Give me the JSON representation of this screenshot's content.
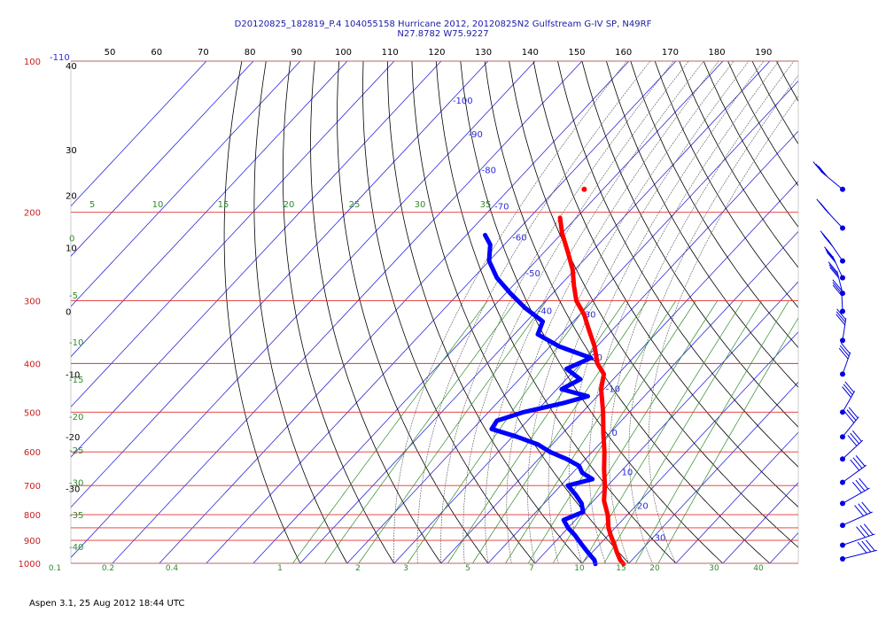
{
  "header": {
    "line1": "D20120825_182819_P.4 104055158 Hurricane 2012, 20120825N2 Gulfstream G-IV SP, N49RF",
    "line2": "N27.8782 W75.9227"
  },
  "footer": {
    "text": "Aspen 3.1, 25 Aug 2012  18:44 UTC"
  },
  "colors": {
    "isobar": "#e23030",
    "pressure_label": "#c81e1e",
    "isotherm": "#2b2bd6",
    "dry_adiabat": "#000000",
    "moist_adiabat": "#555555",
    "mixing_ratio": "#2e8b2e",
    "temperature": "#ff0000",
    "dewpoint": "#0000ff",
    "wind": "#0000e0"
  },
  "chart_data": {
    "type": "line",
    "chart_kind": "skew-T log-p thermodynamic diagram",
    "pressure_axis": {
      "scale": "log",
      "range": [
        1000,
        100
      ],
      "ticks": [
        100,
        200,
        300,
        400,
        500,
        600,
        700,
        800,
        900,
        1000
      ],
      "extra_isobars": [
        850
      ]
    },
    "top_axis_ticks": [
      "50",
      "60",
      "70",
      "80",
      "90",
      "100",
      "110",
      "120",
      "130",
      "140",
      "150",
      "160",
      "170",
      "180",
      "190"
    ],
    "top_left_label": "-110",
    "isotherm_labels": [
      {
        "value": "-100",
        "t": -100,
        "p": 120
      },
      {
        "value": "-90",
        "t": -90,
        "p": 140
      },
      {
        "value": "-80",
        "t": -80,
        "p": 165
      },
      {
        "value": "-70",
        "t": -70,
        "p": 195
      },
      {
        "value": "-60",
        "t": -60,
        "p": 225
      },
      {
        "value": "-50",
        "t": -50,
        "p": 265
      },
      {
        "value": "-40",
        "t": -40,
        "p": 315
      },
      {
        "value": "-30",
        "t": -30,
        "p": 320
      },
      {
        "value": "-20",
        "t": -20,
        "p": 390
      },
      {
        "value": "-10",
        "t": -10,
        "p": 450
      },
      {
        "value": "0",
        "t": 0,
        "p": 550
      },
      {
        "value": "10",
        "t": 10,
        "p": 660
      },
      {
        "value": "20",
        "t": 20,
        "p": 770
      },
      {
        "value": "30",
        "t": 30,
        "p": 890
      }
    ],
    "left_axis_labels": [
      {
        "value": "40",
        "p": 102
      },
      {
        "value": "30",
        "p": 150
      },
      {
        "value": "20",
        "p": 185
      },
      {
        "value": "10",
        "p": 235
      },
      {
        "value": "0",
        "p": 315
      },
      {
        "value": "-10",
        "p": 420
      },
      {
        "value": "-20",
        "p": 560
      },
      {
        "value": "-30",
        "p": 710
      }
    ],
    "mixing_ratio_left_labels": [
      {
        "value": "0",
        "p": 225
      },
      {
        "value": "-5",
        "p": 292
      },
      {
        "value": "-10",
        "p": 362
      },
      {
        "value": "-15",
        "p": 430
      },
      {
        "value": "-20",
        "p": 510
      },
      {
        "value": "-25",
        "p": 595
      },
      {
        "value": "-30",
        "p": 690
      },
      {
        "value": "-35",
        "p": 800
      },
      {
        "value": "-40",
        "p": 925
      }
    ],
    "moist_adiabat_top_labels": [
      "5",
      "10",
      "15",
      "20",
      "25",
      "30",
      "35"
    ],
    "mixing_ratio_bottom_labels": [
      "0.1",
      "0.2",
      "0.4",
      "1",
      "2",
      "3",
      "5",
      "7",
      "10",
      "15",
      "20",
      "30",
      "40"
    ],
    "series": [
      {
        "name": "",
        "role": "temperature",
        "color": "#ff0000",
        "points": [
          {
            "p": 1003,
            "t": 29.0
          },
          {
            "p": 985,
            "t": 27.5
          },
          {
            "p": 950,
            "t": 25.2
          },
          {
            "p": 915,
            "t": 23.0
          },
          {
            "p": 880,
            "t": 20.6
          },
          {
            "p": 850,
            "t": 18.6
          },
          {
            "p": 800,
            "t": 15.8
          },
          {
            "p": 750,
            "t": 12.2
          },
          {
            "p": 700,
            "t": 9.4
          },
          {
            "p": 650,
            "t": 6.0
          },
          {
            "p": 600,
            "t": 2.6
          },
          {
            "p": 550,
            "t": -1.4
          },
          {
            "p": 500,
            "t": -5.6
          },
          {
            "p": 450,
            "t": -10.6
          },
          {
            "p": 420,
            "t": -13.0
          },
          {
            "p": 400,
            "t": -16.5
          },
          {
            "p": 370,
            "t": -20.5
          },
          {
            "p": 340,
            "t": -25.5
          },
          {
            "p": 320,
            "t": -29.0
          },
          {
            "p": 300,
            "t": -33.5
          },
          {
            "p": 280,
            "t": -37.0
          },
          {
            "p": 260,
            "t": -40.5
          },
          {
            "p": 240,
            "t": -45.0
          },
          {
            "p": 220,
            "t": -50.0
          },
          {
            "p": 205,
            "t": -53.5
          }
        ]
      },
      {
        "name": "",
        "role": "dewpoint",
        "color": "#0000ff",
        "points": [
          {
            "p": 1003,
            "t": 23.0
          },
          {
            "p": 985,
            "t": 22.0
          },
          {
            "p": 950,
            "t": 19.0
          },
          {
            "p": 915,
            "t": 16.0
          },
          {
            "p": 880,
            "t": 13.0
          },
          {
            "p": 850,
            "t": 10.0
          },
          {
            "p": 820,
            "t": 7.5
          },
          {
            "p": 790,
            "t": 10.0
          },
          {
            "p": 760,
            "t": 8.0
          },
          {
            "p": 730,
            "t": 5.0
          },
          {
            "p": 700,
            "t": 1.5
          },
          {
            "p": 680,
            "t": 5.5
          },
          {
            "p": 660,
            "t": 2.0
          },
          {
            "p": 640,
            "t": 0.0
          },
          {
            "p": 620,
            "t": -4.0
          },
          {
            "p": 600,
            "t": -9.0
          },
          {
            "p": 580,
            "t": -13.0
          },
          {
            "p": 560,
            "t": -19.0
          },
          {
            "p": 540,
            "t": -26.0
          },
          {
            "p": 520,
            "t": -26.5
          },
          {
            "p": 500,
            "t": -22.5
          },
          {
            "p": 480,
            "t": -16.0
          },
          {
            "p": 465,
            "t": -12.0
          },
          {
            "p": 450,
            "t": -19.0
          },
          {
            "p": 430,
            "t": -17.0
          },
          {
            "p": 410,
            "t": -22.0
          },
          {
            "p": 390,
            "t": -19.0
          },
          {
            "p": 370,
            "t": -28.0
          },
          {
            "p": 350,
            "t": -35.0
          },
          {
            "p": 330,
            "t": -36.5
          },
          {
            "p": 310,
            "t": -43.0
          },
          {
            "p": 290,
            "t": -49.0
          },
          {
            "p": 270,
            "t": -55.0
          },
          {
            "p": 250,
            "t": -60.0
          },
          {
            "p": 232,
            "t": -63.0
          },
          {
            "p": 222,
            "t": -66.0
          }
        ]
      }
    ],
    "isolated_points": [
      {
        "role": "temperature",
        "p": 180,
        "t": -54.0
      }
    ],
    "wind_barb_levels_hpa": [
      180,
      215,
      250,
      270,
      290,
      315,
      360,
      420,
      500,
      560,
      620,
      690,
      760,
      840,
      920,
      980
    ]
  }
}
